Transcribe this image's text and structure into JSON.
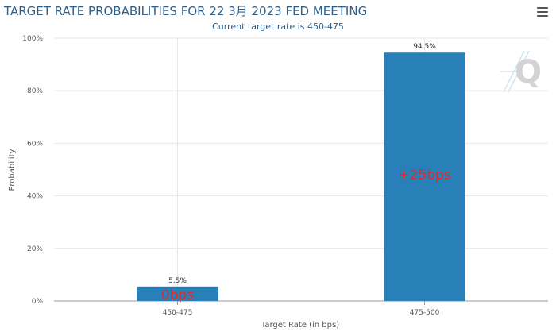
{
  "header": {
    "title": "TARGET RATE PROBABILITIES FOR 22 3月 2023 FED MEETING",
    "subtitle": "Current target rate is 450-475",
    "menu_icon": "hamburger-menu-icon",
    "logo_text": "Q"
  },
  "chart_data": {
    "type": "bar",
    "title": "TARGET RATE PROBABILITIES FOR 22 3月 2023 FED MEETING",
    "subtitle": "Current target rate is 450-475",
    "categories": [
      "450-475",
      "475-500"
    ],
    "values": [
      5.5,
      94.5
    ],
    "data_labels": [
      "5.5%",
      "94.5%"
    ],
    "annotations": [
      "0bps",
      "+25bps"
    ],
    "xlabel": "Target Rate (in bps)",
    "ylabel": "Probability",
    "ylim": [
      0,
      100
    ],
    "yticks": [
      0,
      20,
      40,
      60,
      80,
      100
    ],
    "ytick_labels": [
      "0%",
      "20%",
      "40%",
      "60%",
      "80%",
      "100%"
    ],
    "grid": true,
    "colors": {
      "bar": "#2980b9",
      "annotation": "#e02a2a",
      "grid": "#e6e6e6"
    }
  }
}
